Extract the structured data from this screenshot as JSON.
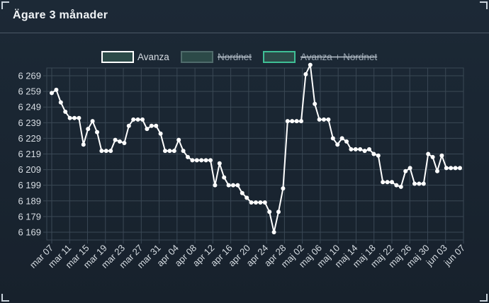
{
  "title": "Ägare 3 månader",
  "colors": {
    "series_avanza": "#ffffff",
    "box_nordnet": "#4f6b6b",
    "box_combined": "#3fbf96",
    "text": "#d7dde3",
    "grid": "#3a4855"
  },
  "chart_data": {
    "type": "line",
    "title": "",
    "xlabel": "",
    "ylabel": "",
    "grid": true,
    "legend_position": "top",
    "legend": [
      {
        "name": "Avanza",
        "hidden": false
      },
      {
        "name": "Nordnet",
        "hidden": true
      },
      {
        "name": "Avanza + Nordnet",
        "hidden": true
      }
    ],
    "yticks": [
      "6 169",
      "6 179",
      "6 189",
      "6 199",
      "6 209",
      "6 219",
      "6 229",
      "6 239",
      "6 249",
      "6 259",
      "6 269"
    ],
    "ylim": [
      6164,
      6274
    ],
    "xticks": [
      "mar 07",
      "mar 11",
      "mar 15",
      "mar 19",
      "mar 23",
      "mar 27",
      "mar 31",
      "apr 04",
      "apr 08",
      "apr 12",
      "apr 16",
      "apr 20",
      "apr 24",
      "apr 28",
      "maj 02",
      "maj 06",
      "maj 10",
      "maj 14",
      "maj 18",
      "maj 22",
      "maj 26",
      "maj 30",
      "jun 03",
      "jun 07"
    ],
    "series": [
      {
        "name": "Avanza",
        "values": [
          6258,
          6260,
          6252,
          6246,
          6242,
          6242,
          6242,
          6225,
          6235,
          6240,
          6233,
          6221,
          6221,
          6221,
          6228,
          6227,
          6226,
          6237,
          6241,
          6241,
          6241,
          6235,
          6237,
          6237,
          6232,
          6221,
          6221,
          6221,
          6228,
          6221,
          6217,
          6215,
          6215,
          6215,
          6215,
          6215,
          6199,
          6213,
          6204,
          6199,
          6199,
          6199,
          6194,
          6191,
          6188,
          6188,
          6188,
          6188,
          6182,
          6169,
          6182,
          6197,
          6240,
          6240,
          6240,
          6240,
          6270,
          6276,
          6251,
          6241,
          6241,
          6241,
          6229,
          6225,
          6229,
          6227,
          6222,
          6222,
          6222,
          6221,
          6222,
          6219,
          6218,
          6201,
          6201,
          6201,
          6199,
          6198,
          6208,
          6210,
          6200,
          6200,
          6200,
          6219,
          6217,
          6208,
          6218,
          6210,
          6210,
          6210,
          6210
        ]
      }
    ]
  }
}
